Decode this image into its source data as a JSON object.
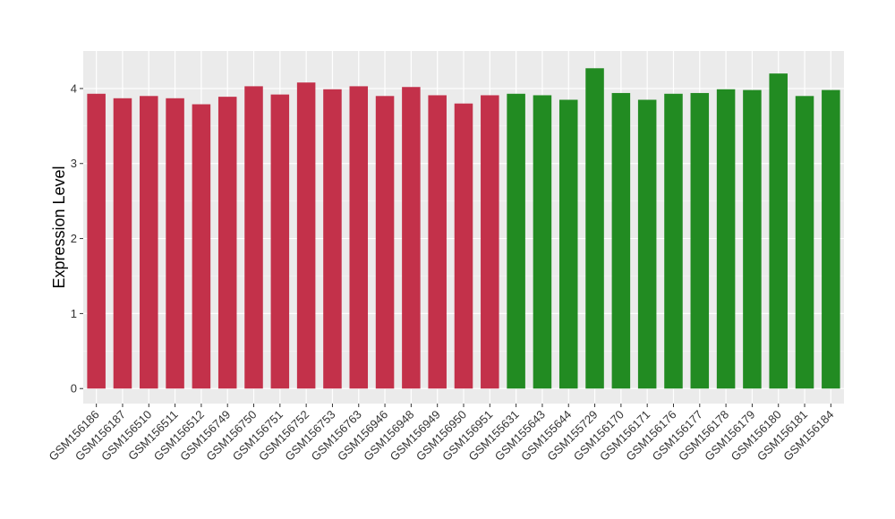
{
  "chart_data": {
    "type": "bar",
    "ylabel": "Expression Level",
    "xlabel": "",
    "ylim": [
      -0.2,
      4.5
    ],
    "yticks": [
      0,
      1,
      2,
      3,
      4
    ],
    "grid": true,
    "background": "#ebebeb",
    "categories": [
      "GSM156186",
      "GSM156187",
      "GSM156510",
      "GSM156511",
      "GSM156512",
      "GSM156749",
      "GSM156750",
      "GSM156751",
      "GSM156752",
      "GSM156753",
      "GSM156763",
      "GSM156946",
      "GSM156948",
      "GSM156949",
      "GSM156950",
      "GSM156951",
      "GSM155631",
      "GSM155643",
      "GSM155644",
      "GSM155729",
      "GSM156170",
      "GSM156171",
      "GSM156176",
      "GSM156177",
      "GSM156178",
      "GSM156179",
      "GSM156180",
      "GSM156181",
      "GSM156184"
    ],
    "values": [
      3.93,
      3.87,
      3.9,
      3.87,
      3.79,
      3.89,
      4.03,
      3.92,
      4.08,
      3.99,
      4.03,
      3.9,
      4.02,
      3.91,
      3.8,
      3.91,
      3.93,
      3.91,
      3.85,
      4.27,
      3.94,
      3.85,
      3.93,
      3.94,
      3.99,
      3.98,
      4.2,
      3.9,
      3.98
    ],
    "colors": [
      "#c3314a",
      "#c3314a",
      "#c3314a",
      "#c3314a",
      "#c3314a",
      "#c3314a",
      "#c3314a",
      "#c3314a",
      "#c3314a",
      "#c3314a",
      "#c3314a",
      "#c3314a",
      "#c3314a",
      "#c3314a",
      "#c3314a",
      "#c3314a",
      "#228b22",
      "#228b22",
      "#228b22",
      "#228b22",
      "#228b22",
      "#228b22",
      "#228b22",
      "#228b22",
      "#228b22",
      "#228b22",
      "#228b22",
      "#228b22",
      "#228b22"
    ]
  }
}
